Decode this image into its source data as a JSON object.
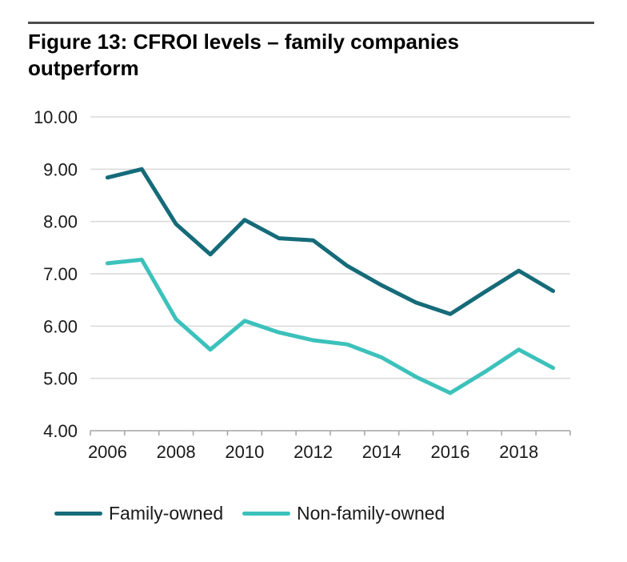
{
  "figure": {
    "title": "Figure 13: CFROI levels – family companies outperform"
  },
  "chart_data": {
    "type": "line",
    "title": "Figure 13: CFROI levels – family companies outperform",
    "categories": [
      2006,
      2007,
      2008,
      2009,
      2010,
      2011,
      2012,
      2013,
      2014,
      2015,
      2016,
      2017,
      2018,
      2019
    ],
    "series": [
      {
        "name": "Family-owned",
        "color": "#156b79",
        "values": [
          8.84,
          9.0,
          7.95,
          7.37,
          8.03,
          7.68,
          7.64,
          7.15,
          6.78,
          6.45,
          6.23,
          6.65,
          7.06,
          6.67
        ]
      },
      {
        "name": "Non-family-owned",
        "color": "#3cc1bb",
        "values": [
          7.2,
          7.27,
          6.13,
          5.55,
          6.1,
          5.88,
          5.73,
          5.65,
          5.4,
          5.03,
          4.72,
          5.12,
          5.55,
          5.2
        ]
      }
    ],
    "ylim": [
      4,
      10
    ],
    "ytick_labels": [
      "10.00",
      "9.00",
      "8.00",
      "7.00",
      "6.00",
      "5.00",
      "4.00"
    ],
    "xtick_labels": [
      "2006",
      "2008",
      "2010",
      "2012",
      "2014",
      "2016",
      "2018"
    ],
    "grid": true,
    "legend_position": "bottom"
  },
  "colors": {
    "rule": "#4d4d4d",
    "gridline": "#d9d9d9",
    "axis": "#a3a3a3",
    "tick_text": "#1a1a1a"
  }
}
